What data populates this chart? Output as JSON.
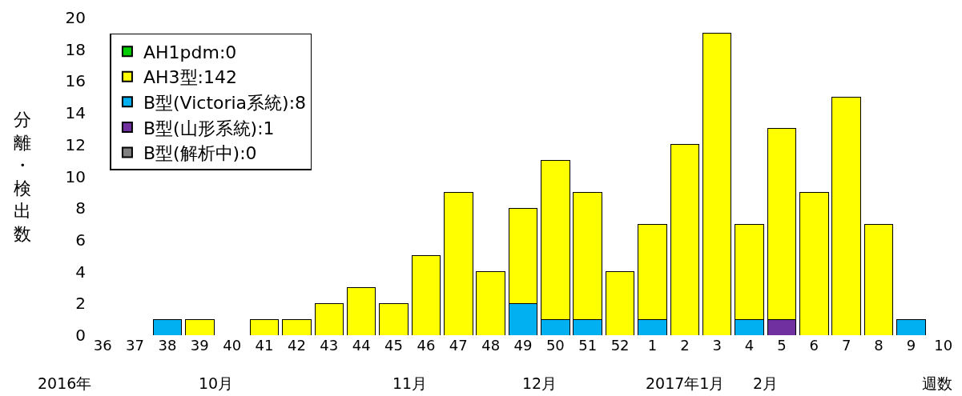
{
  "chart_data": {
    "type": "bar",
    "stacked": true,
    "ylabel": "分離・検出数",
    "xlabel": "週数",
    "categories": [
      "36",
      "37",
      "38",
      "39",
      "40",
      "41",
      "42",
      "43",
      "44",
      "45",
      "46",
      "47",
      "48",
      "49",
      "50",
      "51",
      "52",
      "1",
      "2",
      "3",
      "4",
      "5",
      "6",
      "7",
      "8",
      "9",
      "10"
    ],
    "series": [
      {
        "name": "B型(Victoria系統):8",
        "color": "#00b0f0",
        "values": [
          0,
          0,
          1,
          0,
          0,
          0,
          0,
          0,
          0,
          0,
          0,
          0,
          0,
          2,
          1,
          1,
          0,
          1,
          0,
          0,
          1,
          0,
          0,
          0,
          0,
          1,
          0
        ]
      },
      {
        "name": "B型(山形系統):1",
        "color": "#7030a0",
        "values": [
          0,
          0,
          0,
          0,
          0,
          0,
          0,
          0,
          0,
          0,
          0,
          0,
          0,
          0,
          0,
          0,
          0,
          0,
          0,
          0,
          0,
          1,
          0,
          0,
          0,
          0,
          0
        ]
      },
      {
        "name": "AH1pdm:0",
        "color": "#00cc00",
        "values": [
          0,
          0,
          0,
          0,
          0,
          0,
          0,
          0,
          0,
          0,
          0,
          0,
          0,
          0,
          0,
          0,
          0,
          0,
          0,
          0,
          0,
          0,
          0,
          0,
          0,
          0,
          0
        ]
      },
      {
        "name": "AH3型:142",
        "color": "#ffff00",
        "values": [
          0,
          0,
          0,
          1,
          0,
          1,
          1,
          2,
          3,
          2,
          5,
          9,
          4,
          6,
          10,
          8,
          4,
          6,
          12,
          19,
          6,
          12,
          9,
          15,
          7,
          0,
          0
        ]
      },
      {
        "name": "B型(解析中):0",
        "color": "#808080",
        "values": [
          0,
          0,
          0,
          0,
          0,
          0,
          0,
          0,
          0,
          0,
          0,
          0,
          0,
          0,
          0,
          0,
          0,
          0,
          0,
          0,
          0,
          0,
          0,
          0,
          0,
          0,
          0
        ]
      }
    ],
    "ylim": [
      0,
      20
    ],
    "yticks": [
      0,
      2,
      4,
      6,
      8,
      10,
      12,
      14,
      16,
      18,
      20
    ],
    "legend": "top left",
    "annotations": [
      "2016年",
      "10月",
      "11月",
      "12月",
      "2017年1月",
      "2月"
    ]
  }
}
